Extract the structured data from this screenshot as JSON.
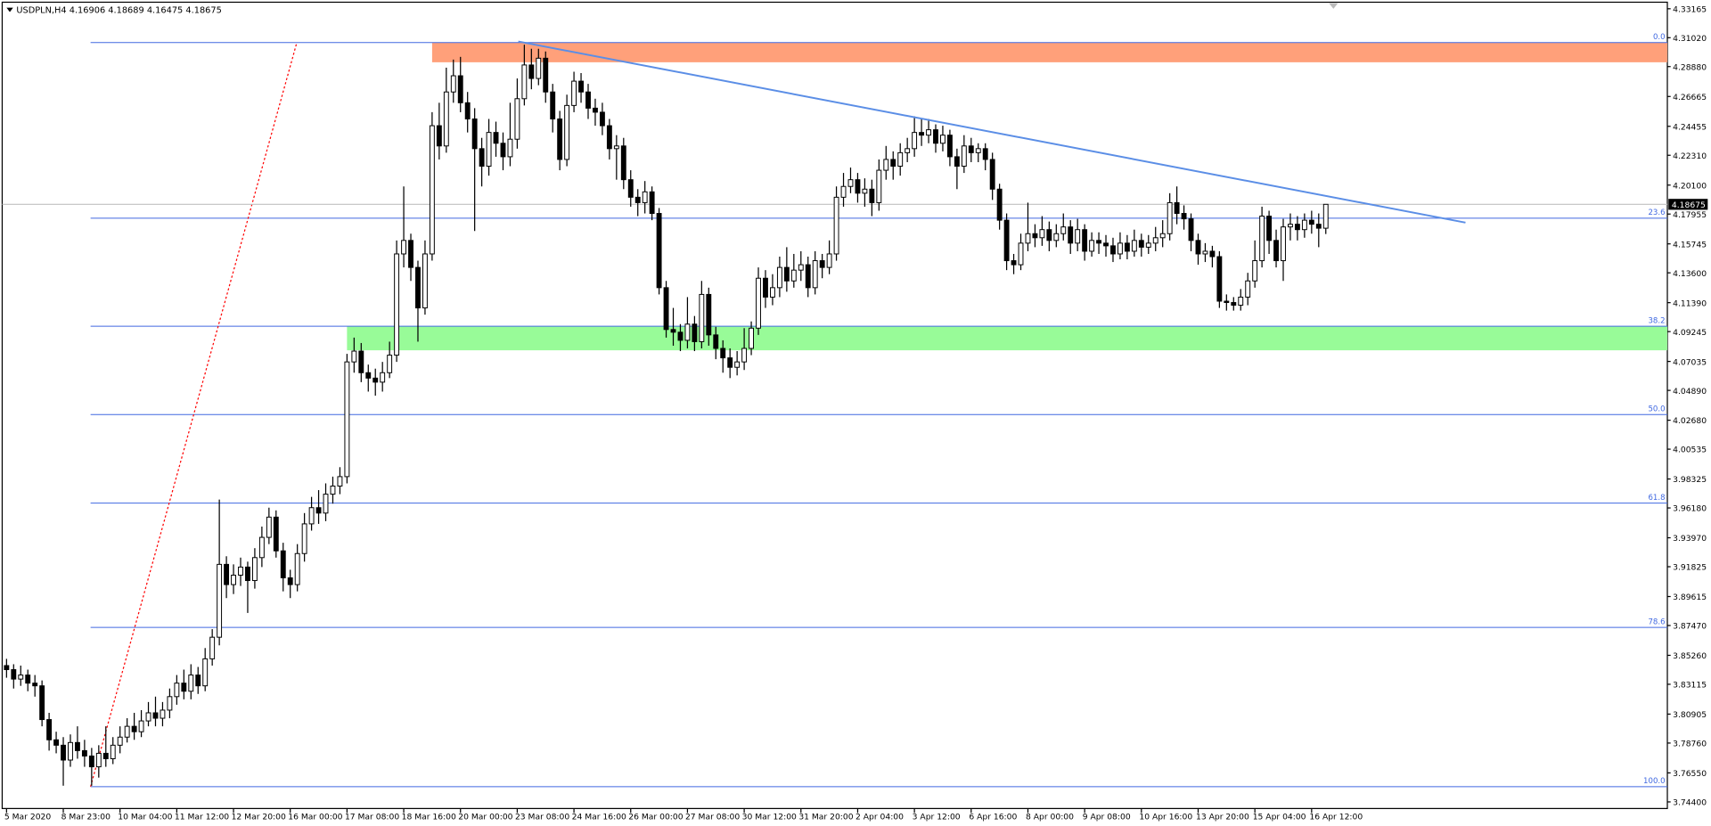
{
  "chart_data": {
    "type": "candlestick",
    "title": "USDPLN,H4  4.16906 4.18689 4.16475 4.18675",
    "up_color": "#ffffff",
    "down_color": "#000000",
    "edge_color": "#000000",
    "ylim": [
      3.7391,
      4.3365
    ],
    "yticks": [
      4.33165,
      {
        "value": 4.3102,
        "label": "4.31020"
      },
      {
        "value": 4.2888,
        "label": "4.28880"
      },
      4.26665,
      4.24455,
      {
        "value": 4.2231,
        "label": "4.22310"
      },
      {
        "value": 4.201,
        "label": "4.20100"
      },
      4.17955,
      4.15745,
      {
        "value": 4.136,
        "label": "4.13600"
      },
      {
        "value": 4.1139,
        "label": "4.11390"
      },
      4.09245,
      4.07035,
      {
        "value": 4.0489,
        "label": "4.04890"
      },
      {
        "value": 4.0268,
        "label": "4.02680"
      },
      4.00535,
      3.98325,
      {
        "value": 3.9618,
        "label": "3.96180"
      },
      {
        "value": 3.9397,
        "label": "3.93970"
      },
      3.91825,
      3.89615,
      {
        "value": 3.8747,
        "label": "3.87470"
      },
      {
        "value": 3.8526,
        "label": "3.85260"
      },
      3.83115,
      3.80905,
      {
        "value": 3.7876,
        "label": "3.78760"
      },
      {
        "value": 3.7655,
        "label": "3.76550"
      },
      {
        "value": 3.744,
        "label": "3.74400"
      }
    ],
    "categories": [
      "5 Mar 2020",
      null,
      null,
      null,
      null,
      null,
      null,
      null,
      "8 Mar 23:00",
      null,
      null,
      null,
      null,
      null,
      null,
      null,
      "10 Mar 04:00",
      null,
      null,
      null,
      null,
      null,
      null,
      null,
      "11 Mar 12:00",
      null,
      null,
      null,
      null,
      null,
      null,
      null,
      "12 Mar 20:00",
      null,
      null,
      null,
      null,
      null,
      null,
      null,
      "16 Mar 00:00",
      null,
      null,
      null,
      null,
      null,
      null,
      null,
      "17 Mar 08:00",
      null,
      null,
      null,
      null,
      null,
      null,
      null,
      "18 Mar 16:00",
      null,
      null,
      null,
      null,
      null,
      null,
      null,
      "20 Mar 00:00",
      null,
      null,
      null,
      null,
      null,
      null,
      null,
      "23 Mar 08:00",
      null,
      null,
      null,
      null,
      null,
      null,
      null,
      "24 Mar 16:00",
      null,
      null,
      null,
      null,
      null,
      null,
      null,
      "26 Mar 00:00",
      null,
      null,
      null,
      null,
      null,
      null,
      null,
      "27 Mar 08:00",
      null,
      null,
      null,
      null,
      null,
      null,
      null,
      "30 Mar 12:00",
      null,
      null,
      null,
      null,
      null,
      null,
      null,
      "31 Mar 20:00",
      null,
      null,
      null,
      null,
      null,
      null,
      null,
      "2 Apr 04:00",
      null,
      null,
      null,
      null,
      null,
      null,
      null,
      "3 Apr 12:00",
      null,
      null,
      null,
      null,
      null,
      null,
      null,
      "6 Apr 16:00",
      null,
      null,
      null,
      null,
      null,
      null,
      null,
      "8 Apr 00:00",
      null,
      null,
      null,
      null,
      null,
      null,
      null,
      "9 Apr 08:00",
      null,
      null,
      null,
      null,
      null,
      null,
      null,
      "10 Apr 16:00",
      null,
      null,
      null,
      null,
      null,
      null,
      null,
      "13 Apr 20:00",
      null,
      null,
      null,
      null,
      null,
      null,
      null,
      "15 Apr 04:00",
      null,
      null,
      null,
      null,
      null,
      null,
      null,
      "16 Apr 12:00",
      null,
      null
    ],
    "ohlc": [
      [
        3.845,
        3.85,
        3.836,
        3.842
      ],
      [
        3.842,
        3.846,
        3.828,
        3.835
      ],
      [
        3.835,
        3.845,
        3.83,
        3.838
      ],
      [
        3.838,
        3.842,
        3.826,
        3.832
      ],
      [
        3.832,
        3.838,
        3.822,
        3.83
      ],
      [
        3.83,
        3.834,
        3.8,
        3.805
      ],
      [
        3.805,
        3.81,
        3.782,
        3.79
      ],
      [
        3.79,
        3.796,
        3.78,
        3.786
      ],
      [
        3.786,
        3.792,
        3.756,
        3.775
      ],
      [
        3.775,
        3.794,
        3.77,
        3.788
      ],
      [
        3.788,
        3.8,
        3.776,
        3.782
      ],
      [
        3.782,
        3.79,
        3.77,
        3.778
      ],
      [
        3.778,
        3.784,
        3.756,
        3.77
      ],
      [
        3.77,
        3.786,
        3.762,
        3.78
      ],
      [
        3.78,
        3.8,
        3.77,
        3.776
      ],
      [
        3.776,
        3.792,
        3.772,
        3.786
      ],
      [
        3.786,
        3.8,
        3.78,
        3.792
      ],
      [
        3.792,
        3.806,
        3.788,
        3.8
      ],
      [
        3.8,
        3.81,
        3.79,
        3.796
      ],
      [
        3.796,
        3.812,
        3.792,
        3.804
      ],
      [
        3.804,
        3.818,
        3.8,
        3.81
      ],
      [
        3.81,
        3.822,
        3.8,
        3.806
      ],
      [
        3.806,
        3.818,
        3.8,
        3.812
      ],
      [
        3.812,
        3.828,
        3.806,
        3.822
      ],
      [
        3.822,
        3.838,
        3.816,
        3.832
      ],
      [
        3.832,
        3.842,
        3.82,
        3.826
      ],
      [
        3.826,
        3.846,
        3.82,
        3.838
      ],
      [
        3.838,
        3.844,
        3.824,
        3.83
      ],
      [
        3.83,
        3.858,
        3.826,
        3.85
      ],
      [
        3.85,
        3.872,
        3.845,
        3.866
      ],
      [
        3.866,
        3.968,
        3.86,
        3.92
      ],
      [
        3.92,
        3.926,
        3.895,
        3.905
      ],
      [
        3.905,
        3.92,
        3.898,
        3.912
      ],
      [
        3.912,
        3.925,
        3.904,
        3.918
      ],
      [
        3.918,
        3.922,
        3.884,
        3.908
      ],
      [
        3.908,
        3.932,
        3.902,
        3.925
      ],
      [
        3.925,
        3.948,
        3.918,
        3.94
      ],
      [
        3.94,
        3.962,
        3.935,
        3.955
      ],
      [
        3.955,
        3.96,
        3.925,
        3.93
      ],
      [
        3.93,
        3.936,
        3.9,
        3.91
      ],
      [
        3.91,
        3.916,
        3.895,
        3.905
      ],
      [
        3.905,
        3.935,
        3.9,
        3.928
      ],
      [
        3.928,
        3.958,
        3.922,
        3.95
      ],
      [
        3.95,
        3.97,
        3.945,
        3.962
      ],
      [
        3.962,
        3.975,
        3.95,
        3.958
      ],
      [
        3.958,
        3.98,
        3.952,
        3.972
      ],
      [
        3.972,
        3.985,
        3.965,
        3.978
      ],
      [
        3.978,
        3.992,
        3.972,
        3.985
      ],
      [
        3.985,
        4.076,
        3.98,
        4.07
      ],
      [
        4.07,
        4.088,
        4.062,
        4.078
      ],
      [
        4.078,
        4.084,
        4.055,
        4.062
      ],
      [
        4.062,
        4.068,
        4.048,
        4.058
      ],
      [
        4.058,
        4.065,
        4.045,
        4.055
      ],
      [
        4.055,
        4.07,
        4.048,
        4.062
      ],
      [
        4.062,
        4.085,
        4.058,
        4.075
      ],
      [
        4.075,
        4.16,
        4.07,
        4.15
      ],
      [
        4.15,
        4.2,
        4.14,
        4.16
      ],
      [
        4.16,
        4.165,
        4.13,
        4.14
      ],
      [
        4.14,
        4.145,
        4.085,
        4.11
      ],
      [
        4.11,
        4.16,
        4.105,
        4.15
      ],
      [
        4.15,
        4.255,
        4.145,
        4.245
      ],
      [
        4.245,
        4.262,
        4.22,
        4.23
      ],
      [
        4.23,
        4.288,
        4.225,
        4.27
      ],
      [
        4.27,
        4.294,
        4.262,
        4.282
      ],
      [
        4.282,
        4.296,
        4.255,
        4.262
      ],
      [
        4.262,
        4.27,
        4.24,
        4.25
      ],
      [
        4.25,
        4.258,
        4.167,
        4.228
      ],
      [
        4.228,
        4.236,
        4.2,
        4.215
      ],
      [
        4.215,
        4.25,
        4.208,
        4.24
      ],
      [
        4.24,
        4.248,
        4.222,
        4.232
      ],
      [
        4.232,
        4.24,
        4.212,
        4.222
      ],
      [
        4.222,
        4.262,
        4.215,
        4.235
      ],
      [
        4.235,
        4.28,
        4.228,
        4.265
      ],
      [
        4.265,
        4.305,
        4.26,
        4.29
      ],
      [
        4.29,
        4.302,
        4.272,
        4.28
      ],
      [
        4.28,
        4.302,
        4.275,
        4.295
      ],
      [
        4.295,
        4.3,
        4.262,
        4.27
      ],
      [
        4.27,
        4.276,
        4.24,
        4.25
      ],
      [
        4.25,
        4.256,
        4.212,
        4.22
      ],
      [
        4.22,
        4.268,
        4.215,
        4.26
      ],
      [
        4.26,
        4.285,
        4.255,
        4.278
      ],
      [
        4.278,
        4.284,
        4.262,
        4.27
      ],
      [
        4.27,
        4.276,
        4.25,
        4.258
      ],
      [
        4.258,
        4.265,
        4.245,
        4.255
      ],
      [
        4.255,
        4.262,
        4.238,
        4.245
      ],
      [
        4.245,
        4.25,
        4.22,
        4.228
      ],
      [
        4.228,
        4.238,
        4.205,
        4.23
      ],
      [
        4.23,
        4.236,
        4.198,
        4.205
      ],
      [
        4.205,
        4.212,
        4.185,
        4.192
      ],
      [
        4.192,
        4.198,
        4.178,
        4.188
      ],
      [
        4.188,
        4.204,
        4.18,
        4.196
      ],
      [
        4.196,
        4.2,
        4.175,
        4.18
      ],
      [
        4.18,
        4.184,
        4.12,
        4.125
      ],
      [
        4.125,
        4.13,
        4.088,
        4.094
      ],
      [
        4.094,
        4.11,
        4.082,
        4.092
      ],
      [
        4.092,
        4.098,
        4.078,
        4.086
      ],
      [
        4.086,
        4.118,
        4.08,
        4.098
      ],
      [
        4.098,
        4.104,
        4.078,
        4.085
      ],
      [
        4.085,
        4.13,
        4.08,
        4.12
      ],
      [
        4.12,
        4.125,
        4.082,
        4.09
      ],
      [
        4.09,
        4.096,
        4.072,
        4.08
      ],
      [
        4.08,
        4.086,
        4.062,
        4.073
      ],
      [
        4.073,
        4.08,
        4.058,
        4.066
      ],
      [
        4.066,
        4.078,
        4.06,
        4.07
      ],
      [
        4.07,
        4.095,
        4.064,
        4.08
      ],
      [
        4.08,
        4.1,
        4.075,
        4.095
      ],
      [
        4.095,
        4.14,
        4.09,
        4.132
      ],
      [
        4.132,
        4.138,
        4.11,
        4.118
      ],
      [
        4.118,
        4.135,
        4.112,
        4.125
      ],
      [
        4.125,
        4.148,
        4.118,
        4.14
      ],
      [
        4.14,
        4.155,
        4.122,
        4.13
      ],
      [
        4.13,
        4.15,
        4.125,
        4.138
      ],
      [
        4.138,
        4.152,
        4.13,
        4.142
      ],
      [
        4.142,
        4.148,
        4.118,
        4.125
      ],
      [
        4.125,
        4.152,
        4.12,
        4.145
      ],
      [
        4.145,
        4.15,
        4.132,
        4.14
      ],
      [
        4.14,
        4.16,
        4.135,
        4.15
      ],
      [
        4.15,
        4.2,
        4.145,
        4.192
      ],
      [
        4.192,
        4.21,
        4.185,
        4.2
      ],
      [
        4.2,
        4.214,
        4.195,
        4.205
      ],
      [
        4.205,
        4.21,
        4.188,
        4.195
      ],
      [
        4.195,
        4.206,
        4.185,
        4.198
      ],
      [
        4.198,
        4.205,
        4.178,
        4.188
      ],
      [
        4.188,
        4.22,
        4.182,
        4.212
      ],
      [
        4.212,
        4.23,
        4.205,
        4.22
      ],
      [
        4.22,
        4.226,
        4.205,
        4.215
      ],
      [
        4.215,
        4.232,
        4.208,
        4.225
      ],
      [
        4.225,
        4.236,
        4.218,
        4.228
      ],
      [
        4.228,
        4.252,
        4.222,
        4.24
      ],
      [
        4.24,
        4.25,
        4.23,
        4.238
      ],
      [
        4.238,
        4.25,
        4.232,
        4.242
      ],
      [
        4.242,
        4.246,
        4.225,
        4.232
      ],
      [
        4.232,
        4.245,
        4.226,
        4.238
      ],
      [
        4.238,
        4.242,
        4.215,
        4.222
      ],
      [
        4.222,
        4.228,
        4.198,
        4.215
      ],
      [
        4.215,
        4.238,
        4.21,
        4.23
      ],
      [
        4.23,
        4.236,
        4.218,
        4.225
      ],
      [
        4.225,
        4.232,
        4.218,
        4.228
      ],
      [
        4.228,
        4.232,
        4.212,
        4.22
      ],
      [
        4.22,
        4.225,
        4.19,
        4.198
      ],
      [
        4.198,
        4.202,
        4.168,
        4.175
      ],
      [
        4.175,
        4.18,
        4.138,
        4.145
      ],
      [
        4.145,
        4.15,
        4.135,
        4.142
      ],
      [
        4.142,
        4.165,
        4.138,
        4.158
      ],
      [
        4.158,
        4.188,
        4.152,
        4.165
      ],
      [
        4.165,
        4.172,
        4.155,
        4.162
      ],
      [
        4.162,
        4.178,
        4.156,
        4.168
      ],
      [
        4.168,
        4.174,
        4.152,
        4.16
      ],
      [
        4.16,
        4.172,
        4.155,
        4.165
      ],
      [
        4.165,
        4.18,
        4.16,
        4.17
      ],
      [
        4.17,
        4.175,
        4.15,
        4.158
      ],
      [
        4.158,
        4.176,
        4.152,
        4.168
      ],
      [
        4.168,
        4.172,
        4.145,
        4.152
      ],
      [
        4.152,
        4.166,
        4.148,
        4.16
      ],
      [
        4.16,
        4.166,
        4.15,
        4.158
      ],
      [
        4.158,
        4.164,
        4.148,
        4.156
      ],
      [
        4.156,
        4.162,
        4.144,
        4.15
      ],
      [
        4.15,
        4.166,
        4.146,
        4.158
      ],
      [
        4.158,
        4.164,
        4.146,
        4.152
      ],
      [
        4.152,
        4.168,
        4.148,
        4.16
      ],
      [
        4.16,
        4.165,
        4.148,
        4.155
      ],
      [
        4.155,
        4.164,
        4.15,
        4.158
      ],
      [
        4.158,
        4.17,
        4.152,
        4.162
      ],
      [
        4.162,
        4.175,
        4.155,
        4.165
      ],
      [
        4.165,
        4.195,
        4.16,
        4.188
      ],
      [
        4.188,
        4.2,
        4.172,
        4.18
      ],
      [
        4.18,
        4.186,
        4.168,
        4.176
      ],
      [
        4.176,
        4.18,
        4.152,
        4.16
      ],
      [
        4.16,
        4.165,
        4.142,
        4.15
      ],
      [
        4.15,
        4.158,
        4.144,
        4.152
      ],
      [
        4.152,
        4.156,
        4.14,
        4.148
      ],
      [
        4.148,
        4.152,
        4.11,
        4.115
      ],
      [
        4.115,
        4.12,
        4.108,
        4.114
      ],
      [
        4.114,
        4.118,
        4.108,
        4.112
      ],
      [
        4.112,
        4.124,
        4.108,
        4.118
      ],
      [
        4.118,
        4.136,
        4.112,
        4.13
      ],
      [
        4.13,
        4.16,
        4.125,
        4.145
      ],
      [
        4.145,
        4.185,
        4.14,
        4.178
      ],
      [
        4.178,
        4.182,
        4.15,
        4.16
      ],
      [
        4.16,
        4.168,
        4.14,
        4.145
      ],
      [
        4.145,
        4.176,
        4.13,
        4.17
      ],
      [
        4.17,
        4.18,
        4.16,
        4.172
      ],
      [
        4.172,
        4.178,
        4.16,
        4.168
      ],
      [
        4.168,
        4.18,
        4.162,
        4.175
      ],
      [
        4.175,
        4.182,
        4.165,
        4.172
      ],
      [
        4.172,
        4.18,
        4.155,
        4.16906
      ],
      [
        4.16906,
        4.18689,
        4.16475,
        4.18675
      ]
    ],
    "fibo": {
      "color": "#4169e1",
      "levels": [
        {
          "label": "0.0",
          "value": 4.3066
        },
        {
          "label": "23.6",
          "value": 4.1765
        },
        {
          "label": "38.2",
          "value": 4.0964
        },
        {
          "label": "50.0",
          "value": 4.031
        },
        {
          "label": "61.8",
          "value": 3.9654
        },
        {
          "label": "78.6",
          "value": 3.8733
        },
        {
          "label": "100.0",
          "value": 3.7553
        }
      ]
    },
    "supply_zone": {
      "color": "#ffa07a",
      "range": [
        4.292,
        4.3066
      ]
    },
    "demand_zone": {
      "color": "#98fb98",
      "range": [
        4.0786,
        4.0964
      ]
    },
    "trendline": {
      "color": "#5b8ee6",
      "values": [
        4.3074,
        4.1732
      ]
    },
    "fibo_anchor": {
      "color": "#ff0000",
      "values": [
        3.7553,
        4.3066
      ]
    }
  }
}
